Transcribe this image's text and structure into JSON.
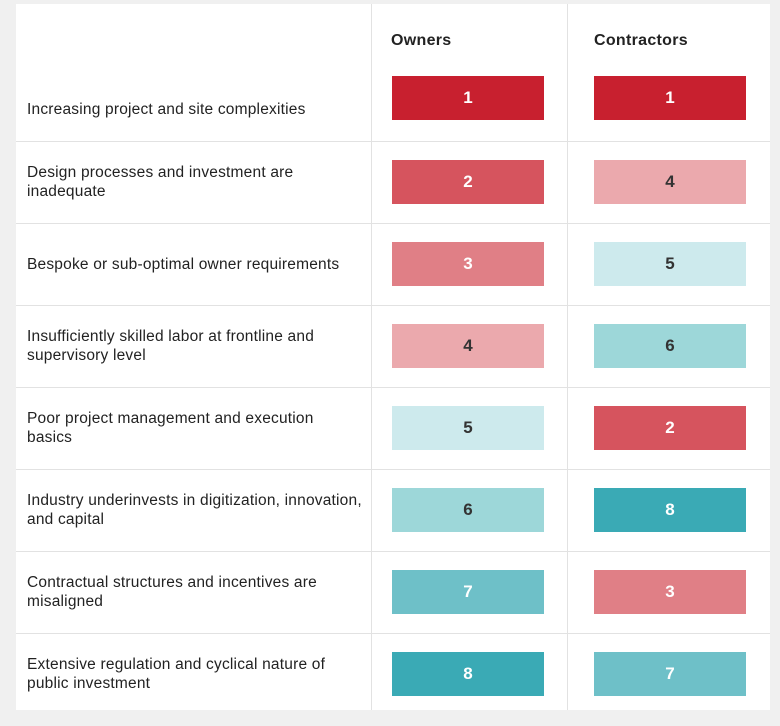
{
  "chart_data": {
    "type": "table",
    "columns": [
      "Owners",
      "Contractors"
    ],
    "rows": [
      {
        "label": "Increasing project and site complexities",
        "owners": 1,
        "contractors": 1
      },
      {
        "label": "Design processes and investment are inadequate",
        "owners": 2,
        "contractors": 4
      },
      {
        "label": "Bespoke or sub-optimal owner requirements",
        "owners": 3,
        "contractors": 5
      },
      {
        "label": "Insufficiently skilled labor at frontline and supervisory level",
        "owners": 4,
        "contractors": 6
      },
      {
        "label": "Poor project management and execution basics",
        "owners": 5,
        "contractors": 2
      },
      {
        "label": "Industry underinvests in digitization, innovation, and capital",
        "owners": 6,
        "contractors": 8
      },
      {
        "label": "Contractual structures and incentives are misaligned",
        "owners": 7,
        "contractors": 3
      },
      {
        "label": "Extensive regulation and cyclical nature of public investment",
        "owners": 8,
        "contractors": 7
      }
    ],
    "rank_colors": {
      "1": "#c8202f",
      "2": "#d6545e",
      "3": "#e07f86",
      "4": "#eba9ad",
      "5": "#cdeaed",
      "6": "#9dd7d9",
      "7": "#6ec0c8",
      "8": "#3aaab5"
    },
    "rank_text_colors": {
      "1": "#ffffff",
      "2": "#ffffff",
      "3": "#ffffff",
      "4": "#333333",
      "5": "#333333",
      "6": "#333333",
      "7": "#ffffff",
      "8": "#ffffff"
    }
  }
}
